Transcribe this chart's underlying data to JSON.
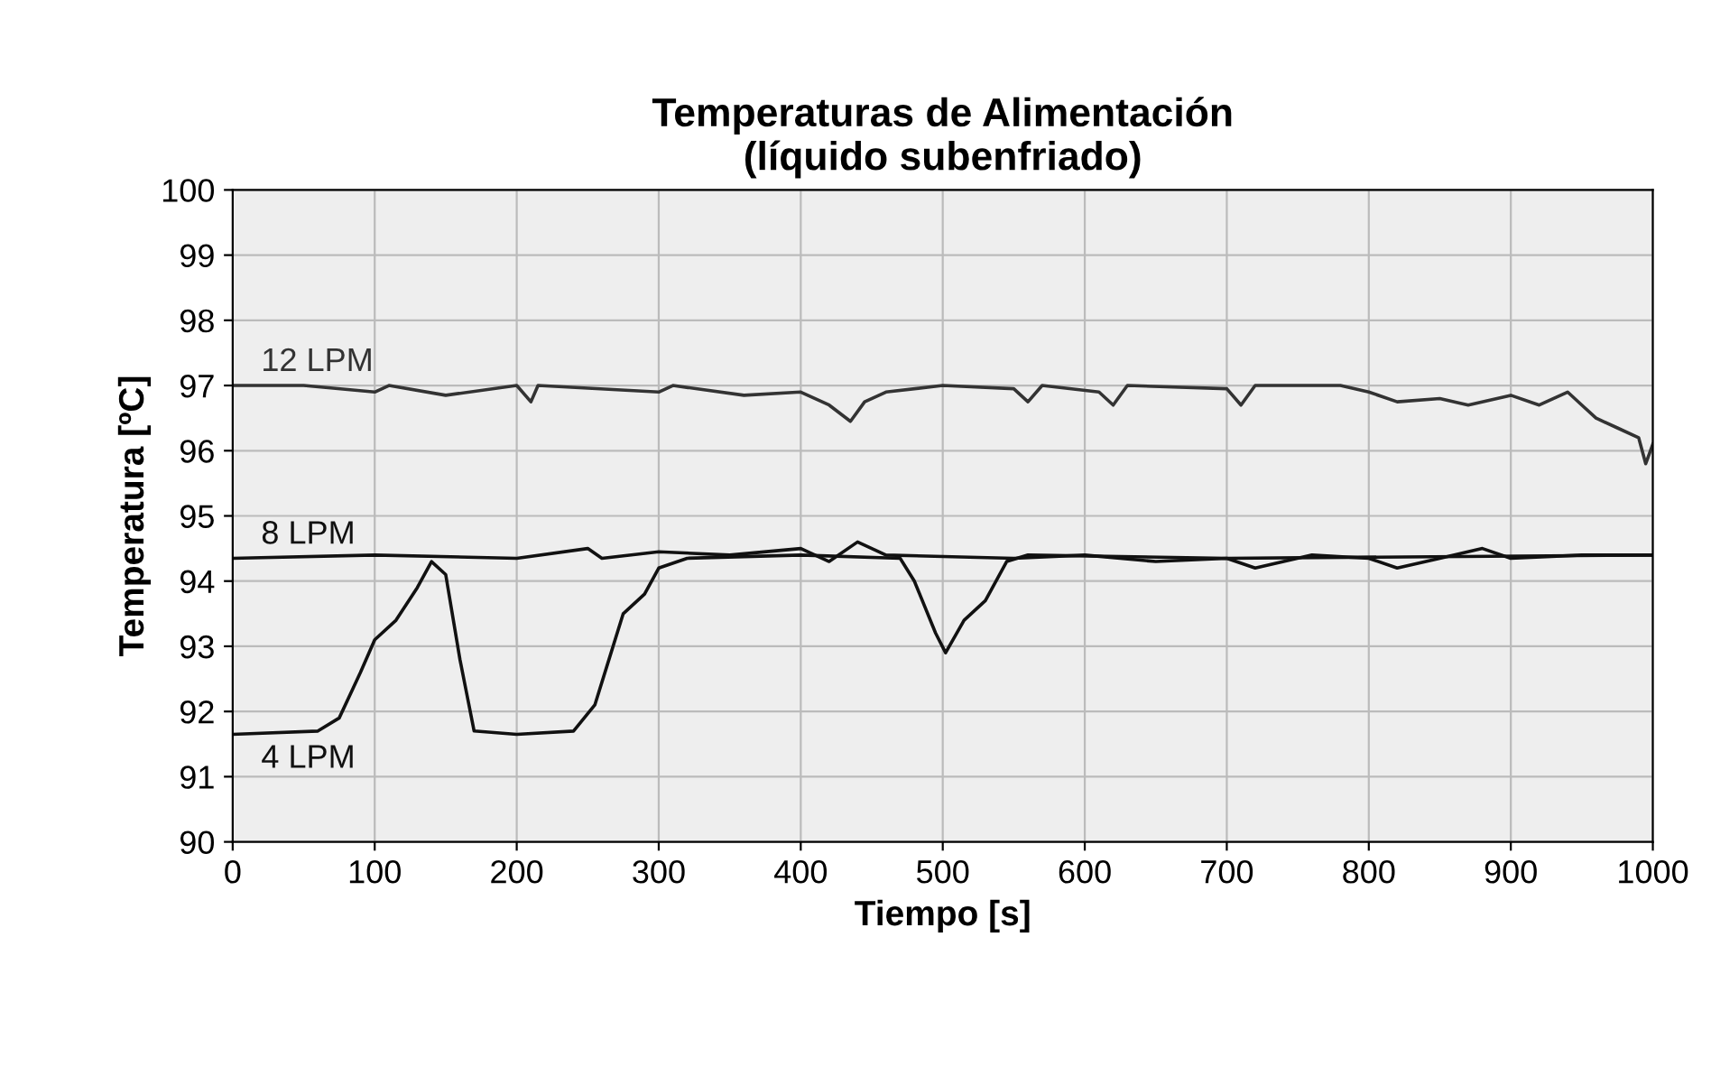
{
  "chart_data": {
    "type": "line",
    "title": "Temperaturas de Alimentación\n(líquido subenfriado)",
    "xlabel": "Tiempo [s]",
    "ylabel": "Temperatura [ºC]",
    "xlim": [
      0,
      1000
    ],
    "xticks": [
      0,
      100,
      200,
      300,
      400,
      500,
      600,
      700,
      800,
      900,
      1000
    ],
    "ylim": [
      90,
      100
    ],
    "yticks": [
      90,
      91,
      92,
      93,
      94,
      95,
      96,
      97,
      98,
      99,
      100
    ],
    "grid": true,
    "legend": false,
    "marker": "none",
    "line_style": "solid",
    "series": [
      {
        "name": "12 LPM",
        "color": "#333333",
        "x": [
          0,
          50,
          100,
          110,
          150,
          200,
          210,
          215,
          300,
          310,
          360,
          400,
          420,
          435,
          445,
          460,
          500,
          550,
          560,
          570,
          610,
          620,
          630,
          700,
          710,
          720,
          780,
          800,
          820,
          850,
          870,
          900,
          920,
          940,
          950,
          960,
          975,
          990,
          995,
          1000
        ],
        "values": [
          97.0,
          97.0,
          96.9,
          97.0,
          96.85,
          97.0,
          96.75,
          97.0,
          96.9,
          97.0,
          96.85,
          96.9,
          96.7,
          96.45,
          96.75,
          96.9,
          97.0,
          96.95,
          96.75,
          97.0,
          96.9,
          96.7,
          97.0,
          96.95,
          96.7,
          97.0,
          97.0,
          96.9,
          96.75,
          96.8,
          96.7,
          96.85,
          96.7,
          96.9,
          96.7,
          96.5,
          96.35,
          96.2,
          95.8,
          96.1
        ]
      },
      {
        "name": "8 LPM",
        "color": "#111111",
        "x": [
          0,
          100,
          200,
          250,
          260,
          300,
          350,
          400,
          420,
          440,
          460,
          550,
          600,
          650,
          700,
          720,
          760,
          800,
          820,
          850,
          880,
          900,
          950,
          1000
        ],
        "values": [
          94.35,
          94.4,
          94.35,
          94.5,
          94.35,
          94.45,
          94.4,
          94.5,
          94.3,
          94.6,
          94.4,
          94.35,
          94.4,
          94.3,
          94.35,
          94.2,
          94.4,
          94.35,
          94.2,
          94.35,
          94.5,
          94.35,
          94.4,
          94.4
        ]
      },
      {
        "name": "4 LPM",
        "color": "#111111",
        "x": [
          0,
          60,
          75,
          90,
          100,
          115,
          130,
          140,
          150,
          160,
          170,
          200,
          240,
          255,
          265,
          275,
          290,
          300,
          320,
          400,
          470,
          480,
          495,
          502,
          515,
          530,
          545,
          560,
          700,
          1000
        ],
        "values": [
          91.65,
          91.7,
          91.9,
          92.6,
          93.1,
          93.4,
          93.9,
          94.3,
          94.1,
          92.8,
          91.7,
          91.65,
          91.7,
          92.1,
          92.8,
          93.5,
          93.8,
          94.2,
          94.35,
          94.4,
          94.35,
          94.0,
          93.2,
          92.9,
          93.4,
          93.7,
          94.3,
          94.4,
          94.35,
          94.4
        ]
      }
    ]
  }
}
